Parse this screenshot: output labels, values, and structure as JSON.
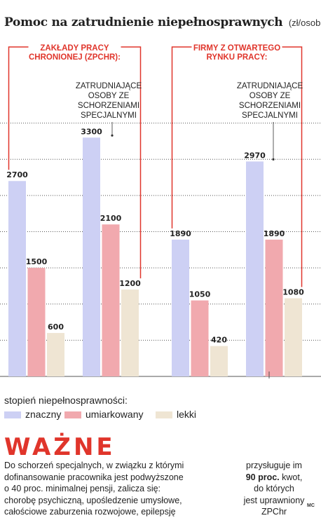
{
  "title": "Pomoc na zatrudnienie niepełnosprawnych",
  "unit": "(zł/osoba)",
  "chart_data": {
    "type": "bar",
    "groups": [
      {
        "label_lines": [
          "ZAKŁADY PRACY",
          "CHRONIONEJ (ZPCHR):"
        ],
        "categories": [
          "",
          "zatrudniające osoby ze schorzeniami specjalnymi"
        ],
        "values": {
          "znaczny": [
            2700,
            3300
          ],
          "umiarkowany": [
            1500,
            2100
          ],
          "lekki": [
            600,
            1200
          ]
        }
      },
      {
        "label_lines": [
          "FIRMY Z OTWARTEGO",
          "RYNKU PRACY:"
        ],
        "categories": [
          "",
          "zatrudniające osoby ze schorzeniami specjalnymi"
        ],
        "values": {
          "znaczny": [
            1890,
            2970
          ],
          "umiarkowany": [
            1050,
            1890
          ],
          "lekki": [
            420,
            1080
          ]
        }
      }
    ],
    "annotation_lines": [
      "ZATRUDNIAJĄCE",
      "OSOBY ZE",
      "SCHORZENIAMI",
      "SPECJALNYMI"
    ],
    "series": [
      {
        "name": "znaczny",
        "color": "#cdd0f4"
      },
      {
        "name": "umiarkowany",
        "color": "#f1a9ae"
      },
      {
        "name": "lekki",
        "color": "#efe5d3"
      }
    ],
    "ylim": [
      0,
      3700
    ],
    "grid": true,
    "legend": "bottom-left"
  },
  "legend": {
    "title": "stopień niepełnosprawności:",
    "items": [
      {
        "label": "znaczny",
        "color": "#cdd0f4"
      },
      {
        "label": "umiarkowany",
        "color": "#f1a9ae"
      },
      {
        "label": "lekki",
        "color": "#efe5d3"
      }
    ]
  },
  "note": {
    "heading": "WAŻNE",
    "left_lines": [
      "Do schorzeń specjalnych, w związku z którymi",
      "dofinansowanie pracownika jest podwyższone",
      "o 40 proc. minimalnej pensji, zalicza się:",
      "chorobę psychiczną, upośledzenie umysłowe,",
      "całościowe zaburzenia rozwojowe, epilepsję"
    ],
    "right_line1": "przysługuje im",
    "right_bold": "90 proc.",
    "right_after_bold": " kwot,",
    "right_line3": "do których",
    "right_line4": "jest uprawniony",
    "right_line5": "ZPChr"
  },
  "credit": "MC",
  "colors": {
    "accent": "#e0352b",
    "grid": "#555555",
    "connector": "#333333"
  }
}
